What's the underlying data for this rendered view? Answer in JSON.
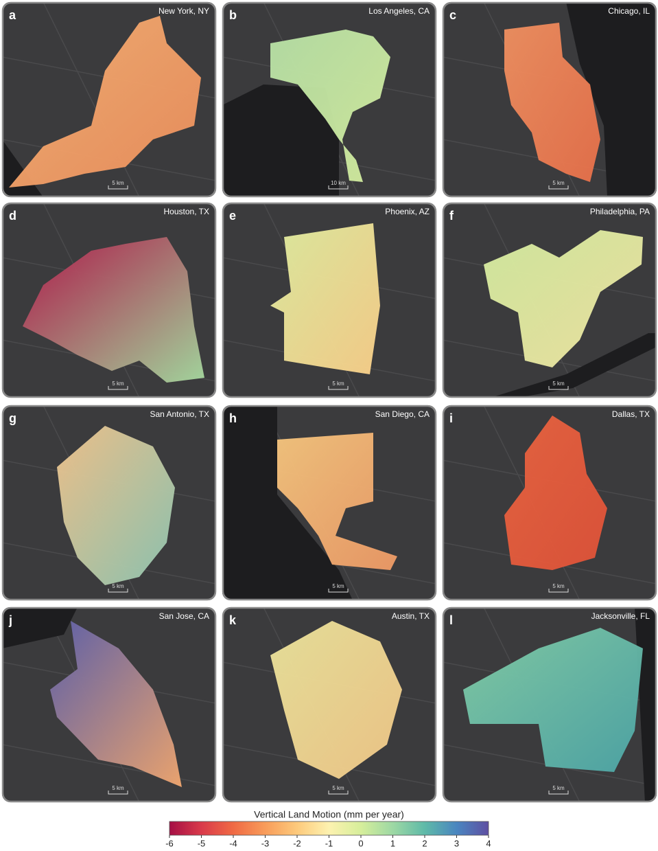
{
  "panels": [
    {
      "letter": "a",
      "city": "New York, NY",
      "scale": "5 km"
    },
    {
      "letter": "b",
      "city": "Los Angeles, CA",
      "scale": "10 km"
    },
    {
      "letter": "c",
      "city": "Chicago, IL",
      "scale": "5 km"
    },
    {
      "letter": "d",
      "city": "Houston, TX",
      "scale": "5 km"
    },
    {
      "letter": "e",
      "city": "Phoenix, AZ",
      "scale": "5 km"
    },
    {
      "letter": "f",
      "city": "Philadelphia, PA",
      "scale": "5 km"
    },
    {
      "letter": "g",
      "city": "San Antonio, TX",
      "scale": "5 km"
    },
    {
      "letter": "h",
      "city": "San Diego, CA",
      "scale": "5 km"
    },
    {
      "letter": "i",
      "city": "Dallas, TX",
      "scale": "5 km"
    },
    {
      "letter": "j",
      "city": "San Jose, CA",
      "scale": "5 km"
    },
    {
      "letter": "k",
      "city": "Austin, TX",
      "scale": "5 km"
    },
    {
      "letter": "l",
      "city": "Jacksonville, FL",
      "scale": "5 km"
    }
  ],
  "colorbar": {
    "title": "Vertical Land Motion (mm per year)",
    "lim": [
      -6,
      4
    ],
    "ticks": [
      -6,
      -5,
      -4,
      -3,
      -2,
      -1,
      0,
      1,
      2,
      3,
      4
    ],
    "colors": [
      "#a50f45",
      "#d93a4a",
      "#f06a44",
      "#f89c5a",
      "#fdca7c",
      "#fdf2b0",
      "#d6ee9b",
      "#9dd8a4",
      "#5fbaa8",
      "#4a86c0",
      "#5e4fa2"
    ]
  }
}
